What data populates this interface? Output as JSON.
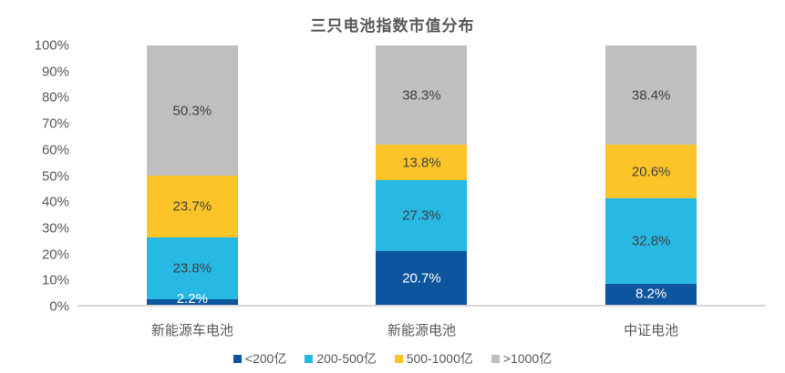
{
  "chart_data": {
    "type": "bar",
    "stacked": true,
    "title": "三只电池指数市值分布",
    "categories": [
      "新能源车电池",
      "新能源电池",
      "中证电池"
    ],
    "series": [
      {
        "name": "<200亿",
        "color": "#0D559E",
        "label_color": "#FFFFFF",
        "values": [
          2.2,
          20.7,
          8.2
        ]
      },
      {
        "name": "200-500亿",
        "color": "#27B8E4",
        "label_color": "#404040",
        "values": [
          23.8,
          27.3,
          32.8
        ]
      },
      {
        "name": "500-1000亿",
        "color": "#FDC42A",
        "label_color": "#404040",
        "values": [
          23.7,
          13.8,
          20.6
        ]
      },
      {
        "name": ">1000亿",
        "color": "#BFBFBF",
        "label_color": "#404040",
        "values": [
          50.3,
          38.3,
          38.4
        ]
      }
    ],
    "y_ticks": [
      0,
      10,
      20,
      30,
      40,
      50,
      60,
      70,
      80,
      90,
      100
    ],
    "y_tick_suffix": "%",
    "value_suffix": "%",
    "ylim": [
      0,
      100
    ],
    "grid": false,
    "legend_position": "bottom",
    "colors": {
      "title_text": "#595959",
      "axis_text": "#595959",
      "axis_line": "#D6D6D6",
      "background": "#FFFFFF"
    }
  }
}
